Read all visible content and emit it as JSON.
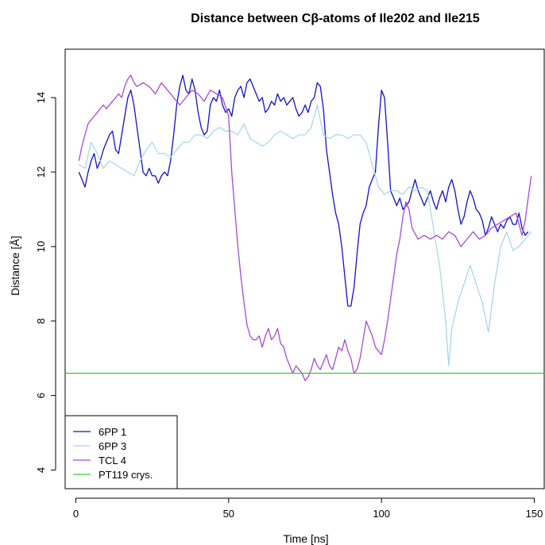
{
  "chart_data": {
    "type": "line",
    "title": "Distance between Cβ-atoms of Ile202 and Ile215",
    "xlabel": "Time [ns]",
    "ylabel": "Distance [Å]",
    "xlim": [
      -3.5,
      153.5
    ],
    "ylim": [
      3.5,
      15.3
    ],
    "xticks": [
      0,
      50,
      100,
      150
    ],
    "yticks": [
      4,
      6,
      8,
      10,
      12,
      14
    ],
    "grid": false,
    "legend_position": "bottom-left",
    "series": [
      {
        "name": "6PP 1",
        "color": "#1111cc",
        "x": [
          1,
          2,
          3,
          4,
          5,
          6,
          7,
          8,
          9,
          10,
          11,
          12,
          13,
          14,
          15,
          16,
          17,
          18,
          19,
          20,
          21,
          22,
          23,
          24,
          25,
          26,
          27,
          28,
          29,
          30,
          31,
          32,
          33,
          34,
          35,
          36,
          37,
          38,
          39,
          40,
          41,
          42,
          43,
          44,
          45,
          46,
          47,
          48,
          49,
          50,
          51,
          52,
          53,
          54,
          55,
          56,
          57,
          58,
          59,
          60,
          61,
          62,
          63,
          64,
          65,
          66,
          67,
          68,
          69,
          70,
          71,
          72,
          73,
          74,
          75,
          76,
          77,
          78,
          79,
          80,
          81,
          82,
          83,
          84,
          85,
          86,
          87,
          88,
          89,
          90,
          91,
          92,
          93,
          94,
          95,
          96,
          97,
          98,
          99,
          100,
          101,
          102,
          103,
          104,
          105,
          106,
          107,
          108,
          109,
          110,
          111,
          112,
          113,
          114,
          115,
          116,
          117,
          118,
          119,
          120,
          121,
          122,
          123,
          124,
          125,
          126,
          127,
          128,
          129,
          130,
          131,
          132,
          133,
          134,
          135,
          136,
          137,
          138,
          139,
          140,
          141,
          142,
          143,
          144,
          145,
          146,
          147,
          148
        ],
        "y": [
          12.0,
          11.8,
          11.6,
          12.0,
          12.3,
          12.5,
          12.1,
          12.3,
          12.6,
          12.8,
          13.0,
          13.1,
          12.6,
          12.5,
          13.0,
          13.5,
          14.0,
          14.2,
          13.8,
          13.2,
          12.6,
          12.0,
          11.9,
          12.1,
          11.9,
          11.9,
          11.7,
          11.9,
          12.0,
          11.9,
          12.3,
          13.0,
          13.8,
          14.3,
          14.6,
          14.2,
          14.1,
          14.5,
          14.2,
          13.6,
          13.2,
          13.0,
          13.1,
          13.8,
          14.0,
          13.9,
          14.2,
          13.8,
          13.6,
          13.7,
          13.5,
          14.0,
          14.2,
          14.3,
          14.0,
          14.4,
          14.5,
          14.3,
          14.1,
          13.9,
          14.0,
          13.6,
          13.7,
          13.9,
          13.8,
          14.1,
          13.9,
          14.0,
          13.8,
          13.9,
          14.0,
          13.7,
          13.5,
          13.6,
          13.8,
          13.6,
          13.9,
          14.0,
          14.4,
          14.3,
          13.7,
          12.6,
          12.0,
          11.4,
          10.9,
          10.6,
          10.0,
          9.2,
          8.4,
          8.4,
          8.9,
          9.8,
          10.6,
          10.9,
          11.1,
          11.6,
          11.8,
          12.0,
          13.2,
          14.2,
          14.0,
          12.8,
          11.5,
          11.3,
          11.1,
          11.3,
          11.0,
          11.1,
          11.2,
          11.5,
          11.8,
          11.5,
          11.3,
          11.1,
          11.3,
          11.5,
          11.2,
          11.0,
          11.3,
          11.5,
          11.2,
          11.6,
          11.8,
          11.5,
          11.0,
          10.6,
          10.8,
          11.2,
          11.5,
          11.3,
          11.0,
          10.9,
          10.7,
          10.3,
          10.5,
          10.8,
          10.6,
          10.4,
          10.6,
          10.5,
          10.7,
          10.8,
          10.6,
          10.6,
          10.9,
          10.5,
          10.3,
          10.4
        ]
      },
      {
        "name": "6PP 3",
        "color": "#a8d8e8",
        "x": [
          1,
          3,
          5,
          7,
          9,
          11,
          13,
          15,
          17,
          19,
          21,
          23,
          25,
          27,
          29,
          31,
          33,
          35,
          37,
          39,
          41,
          43,
          45,
          47,
          49,
          51,
          53,
          55,
          57,
          59,
          61,
          63,
          65,
          67,
          69,
          71,
          73,
          75,
          77,
          79,
          81,
          83,
          85,
          87,
          89,
          91,
          93,
          95,
          97,
          99,
          101,
          103,
          105,
          107,
          109,
          111,
          113,
          115,
          117,
          119,
          121,
          122,
          123,
          125,
          127,
          129,
          131,
          133,
          135,
          137,
          139,
          141,
          143,
          145,
          147,
          149
        ],
        "y": [
          12.2,
          12.1,
          12.8,
          12.5,
          12.1,
          12.3,
          12.2,
          12.1,
          12.0,
          11.9,
          12.3,
          12.6,
          12.8,
          12.5,
          12.5,
          12.4,
          12.6,
          12.8,
          12.8,
          13.0,
          13.0,
          12.9,
          13.1,
          13.2,
          13.1,
          13.1,
          13.0,
          13.3,
          12.9,
          12.8,
          12.7,
          12.8,
          13.0,
          13.1,
          13.0,
          12.9,
          13.0,
          13.0,
          13.2,
          13.8,
          13.0,
          12.9,
          13.0,
          13.0,
          12.9,
          13.0,
          13.0,
          12.8,
          12.2,
          11.6,
          11.4,
          11.5,
          11.5,
          11.4,
          11.6,
          11.5,
          11.6,
          11.5,
          10.5,
          9.5,
          8.0,
          6.8,
          7.8,
          8.5,
          9.0,
          9.5,
          9.0,
          8.5,
          7.7,
          9.0,
          10.0,
          10.4,
          9.9,
          10.0,
          10.2,
          10.4
        ]
      },
      {
        "name": "TCL 4",
        "color": "#a64ad4",
        "x": [
          1,
          2,
          3,
          4,
          5,
          6,
          7,
          8,
          9,
          10,
          11,
          12,
          13,
          14,
          15,
          16,
          17,
          18,
          19,
          20,
          22,
          24,
          26,
          28,
          30,
          32,
          34,
          36,
          38,
          40,
          42,
          44,
          46,
          48,
          50,
          51,
          52,
          53,
          54,
          55,
          56,
          57,
          58,
          59,
          60,
          61,
          62,
          63,
          64,
          65,
          66,
          67,
          68,
          69,
          70,
          71,
          72,
          73,
          74,
          75,
          76,
          77,
          78,
          79,
          80,
          81,
          82,
          83,
          84,
          85,
          86,
          87,
          88,
          89,
          90,
          91,
          92,
          93,
          94,
          95,
          96,
          97,
          98,
          99,
          100,
          101,
          102,
          103,
          104,
          105,
          106,
          107,
          108,
          109,
          110,
          112,
          114,
          116,
          118,
          120,
          122,
          124,
          126,
          128,
          130,
          132,
          134,
          136,
          138,
          140,
          142,
          144,
          146,
          147,
          148,
          149
        ],
        "y": [
          12.3,
          12.7,
          13.0,
          13.3,
          13.4,
          13.5,
          13.6,
          13.7,
          13.8,
          13.7,
          13.8,
          13.9,
          14.0,
          14.1,
          14.0,
          14.3,
          14.5,
          14.6,
          14.4,
          14.3,
          14.4,
          14.3,
          14.1,
          14.4,
          14.2,
          14.0,
          13.8,
          14.0,
          14.2,
          14.1,
          13.9,
          14.2,
          14.1,
          14.0,
          13.5,
          12.0,
          11.0,
          10.0,
          9.2,
          8.5,
          7.9,
          7.6,
          7.5,
          7.5,
          7.6,
          7.3,
          7.6,
          7.8,
          7.5,
          7.6,
          7.8,
          7.4,
          7.3,
          7.0,
          6.8,
          6.6,
          6.8,
          6.7,
          6.6,
          6.4,
          6.5,
          6.7,
          7.0,
          6.8,
          6.7,
          6.9,
          7.1,
          6.8,
          6.7,
          7.0,
          7.3,
          7.2,
          7.5,
          7.2,
          7.0,
          6.6,
          6.7,
          7.0,
          7.5,
          8.0,
          7.8,
          7.6,
          7.3,
          7.2,
          7.1,
          7.5,
          8.0,
          8.6,
          9.2,
          9.8,
          10.2,
          10.8,
          11.2,
          11.0,
          10.5,
          10.2,
          10.3,
          10.2,
          10.3,
          10.2,
          10.4,
          10.3,
          10.0,
          10.2,
          10.4,
          10.2,
          10.3,
          10.5,
          10.6,
          10.7,
          10.8,
          10.9,
          10.3,
          10.7,
          11.3,
          11.9
        ]
      },
      {
        "name": "PT119 crys.",
        "color": "#33cc33",
        "x": [
          -3.5,
          153.5
        ],
        "y": [
          6.6,
          6.6
        ]
      }
    ]
  }
}
